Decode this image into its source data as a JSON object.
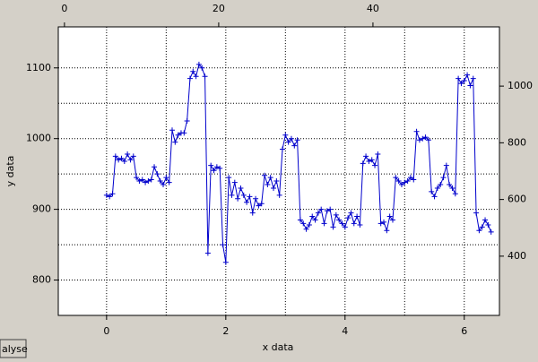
{
  "chart_data": {
    "type": "line",
    "x_label": "x data",
    "y_label": "y data",
    "button": "alyse",
    "x": [
      0,
      0.05,
      0.1,
      0.15,
      0.2,
      0.25,
      0.3,
      0.35,
      0.4,
      0.45,
      0.5,
      0.55,
      0.6,
      0.65,
      0.7,
      0.75,
      0.8,
      0.85,
      0.9,
      0.95,
      1,
      1.05,
      1.1,
      1.15,
      1.2,
      1.25,
      1.3,
      1.35,
      1.4,
      1.45,
      1.5,
      1.55,
      1.6,
      1.65,
      1.7,
      1.75,
      1.8,
      1.85,
      1.9,
      1.95,
      2,
      2.05,
      2.1,
      2.15,
      2.2,
      2.25,
      2.3,
      2.35,
      2.4,
      2.45,
      2.5,
      2.55,
      2.6,
      2.65,
      2.7,
      2.75,
      2.8,
      2.85,
      2.9,
      2.95,
      3,
      3.05,
      3.1,
      3.15,
      3.2,
      3.25,
      3.3,
      3.35,
      3.4,
      3.45,
      3.5,
      3.55,
      3.6,
      3.65,
      3.7,
      3.75,
      3.8,
      3.85,
      3.9,
      3.95,
      4,
      4.05,
      4.1,
      4.15,
      4.2,
      4.25,
      4.3,
      4.35,
      4.4,
      4.45,
      4.5,
      4.55,
      4.6,
      4.65,
      4.7,
      4.75,
      4.8,
      4.85,
      4.9,
      4.95,
      5,
      5.05,
      5.1,
      5.15,
      5.2,
      5.25,
      5.3,
      5.35,
      5.4,
      5.45,
      5.5,
      5.55,
      5.6,
      5.65,
      5.7,
      5.75,
      5.8,
      5.85,
      5.9,
      5.95,
      6,
      6.05,
      6.1,
      6.15,
      6.2,
      6.25,
      6.3,
      6.35,
      6.4,
      6.45
    ],
    "series": [
      {
        "color": "#0000cc",
        "values": [
          920,
          918,
          922,
          975,
          970,
          972,
          968,
          978,
          970,
          975,
          945,
          940,
          942,
          938,
          940,
          942,
          960,
          950,
          940,
          935,
          945,
          938,
          1012,
          995,
          1005,
          1008,
          1008,
          1025,
          1085,
          1095,
          1088,
          1105,
          1100,
          1088,
          838,
          962,
          955,
          960,
          958,
          850,
          825,
          945,
          920,
          938,
          915,
          930,
          920,
          910,
          918,
          895,
          915,
          905,
          908,
          948,
          935,
          945,
          930,
          940,
          920,
          985,
          1005,
          995,
          1000,
          990,
          998,
          885,
          880,
          872,
          878,
          890,
          885,
          895,
          900,
          880,
          898,
          900,
          875,
          892,
          885,
          880,
          875,
          888,
          895,
          880,
          890,
          878,
          965,
          975,
          968,
          970,
          962,
          978,
          880,
          882,
          870,
          890,
          885,
          945,
          940,
          935,
          938,
          940,
          945,
          942,
          1010,
          998,
          1000,
          1002,
          998,
          925,
          918,
          930,
          935,
          945,
          962,
          935,
          930,
          922,
          1085,
          1078,
          1082,
          1090,
          1075,
          1085,
          895,
          870,
          875,
          885,
          878,
          868
        ]
      }
    ],
    "xlim": [
      -0.81,
      6.59
    ],
    "xticks": [
      0,
      2,
      4,
      6
    ],
    "xgrid": [
      0,
      1,
      2,
      3,
      4,
      5,
      6
    ],
    "x2lim": [
      -0.8,
      56.4
    ],
    "x2ticks": [
      0,
      20,
      40
    ],
    "ylim": [
      750,
      1158
    ],
    "yticks": [
      800,
      900,
      1000,
      1100
    ],
    "ygrid": [
      800,
      850,
      900,
      950,
      1000,
      1050,
      1100
    ],
    "y2lim": [
      191,
      1209
    ],
    "y2ticks": [
      400,
      600,
      800,
      1000
    ],
    "grid": true
  }
}
